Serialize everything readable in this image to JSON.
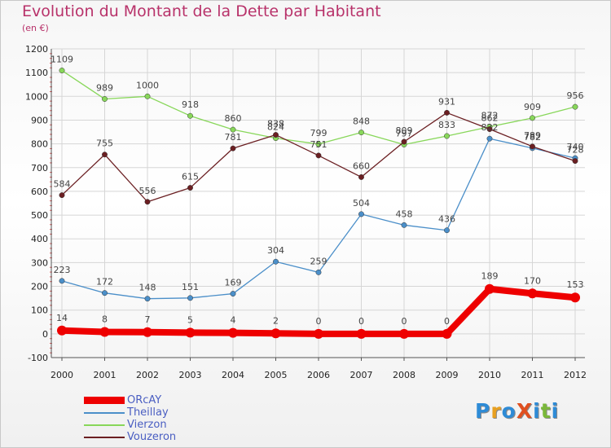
{
  "header": {
    "title": "Evolution du Montant de la Dette par Habitant",
    "subtitle": "(en €)"
  },
  "logo": {
    "text": "ProXiti",
    "letter_colors": [
      "#2e8bd6",
      "#e8a020",
      "#2e8bd6",
      "#e05020",
      "#2e8bd6",
      "#7ab83a",
      "#2e8bd6"
    ]
  },
  "chart_data": {
    "type": "line",
    "x": [
      2000,
      2001,
      2002,
      2003,
      2004,
      2005,
      2006,
      2007,
      2008,
      2009,
      2010,
      2011,
      2012
    ],
    "x_tick_labels": [
      "2000",
      "2001",
      "2002",
      "2003",
      "2004",
      "2005",
      "2006",
      "2007",
      "2008",
      "2009",
      "2010",
      "2011",
      "2012"
    ],
    "ylim": [
      -100,
      1200
    ],
    "y_ticks": [
      -100,
      0,
      100,
      200,
      300,
      400,
      500,
      600,
      700,
      800,
      900,
      1000,
      1100,
      1200
    ],
    "y_tick_labels": [
      "-100",
      "0",
      "100",
      "200",
      "300",
      "400",
      "500",
      "600",
      "700",
      "800",
      "900",
      "1000",
      "1100",
      "1200"
    ],
    "grid": true,
    "legend_position": "bottom-left",
    "series": [
      {
        "name": "ORcAY",
        "color": "#ee0000",
        "values": [
          14,
          8,
          7,
          5,
          4,
          2,
          0,
          0,
          0,
          0,
          189,
          170,
          153
        ],
        "labels": [
          "14",
          "8",
          "7",
          "5",
          "4",
          "2",
          "0",
          "0",
          "0",
          "0",
          "189",
          "170",
          "153"
        ]
      },
      {
        "name": "Theillay",
        "color": "#4b8fc9",
        "values": [
          223,
          172,
          148,
          151,
          169,
          304,
          259,
          504,
          458,
          436,
          822,
          782,
          740
        ],
        "labels": [
          "223",
          "172",
          "148",
          "151",
          "169",
          "304",
          "259",
          "504",
          "458",
          "436",
          "822",
          "782",
          "740"
        ]
      },
      {
        "name": "Vierzon",
        "color": "#88d75a",
        "values": [
          1109,
          989,
          1000,
          918,
          860,
          824,
          799,
          848,
          797,
          833,
          872,
          909,
          956
        ],
        "labels": [
          "1109",
          "989",
          "1000",
          "918",
          "860",
          "824",
          "799",
          "848",
          "797",
          "833",
          "872",
          "909",
          "956"
        ]
      },
      {
        "name": "Vouzeron",
        "color": "#6b1f22",
        "values": [
          584,
          755,
          556,
          615,
          781,
          838,
          751,
          660,
          809,
          931,
          862,
          789,
          728
        ],
        "labels": [
          "584",
          "755",
          "556",
          "615",
          "781",
          "838",
          "751",
          "660",
          "809",
          "931",
          "862",
          "789",
          "728"
        ]
      }
    ]
  }
}
